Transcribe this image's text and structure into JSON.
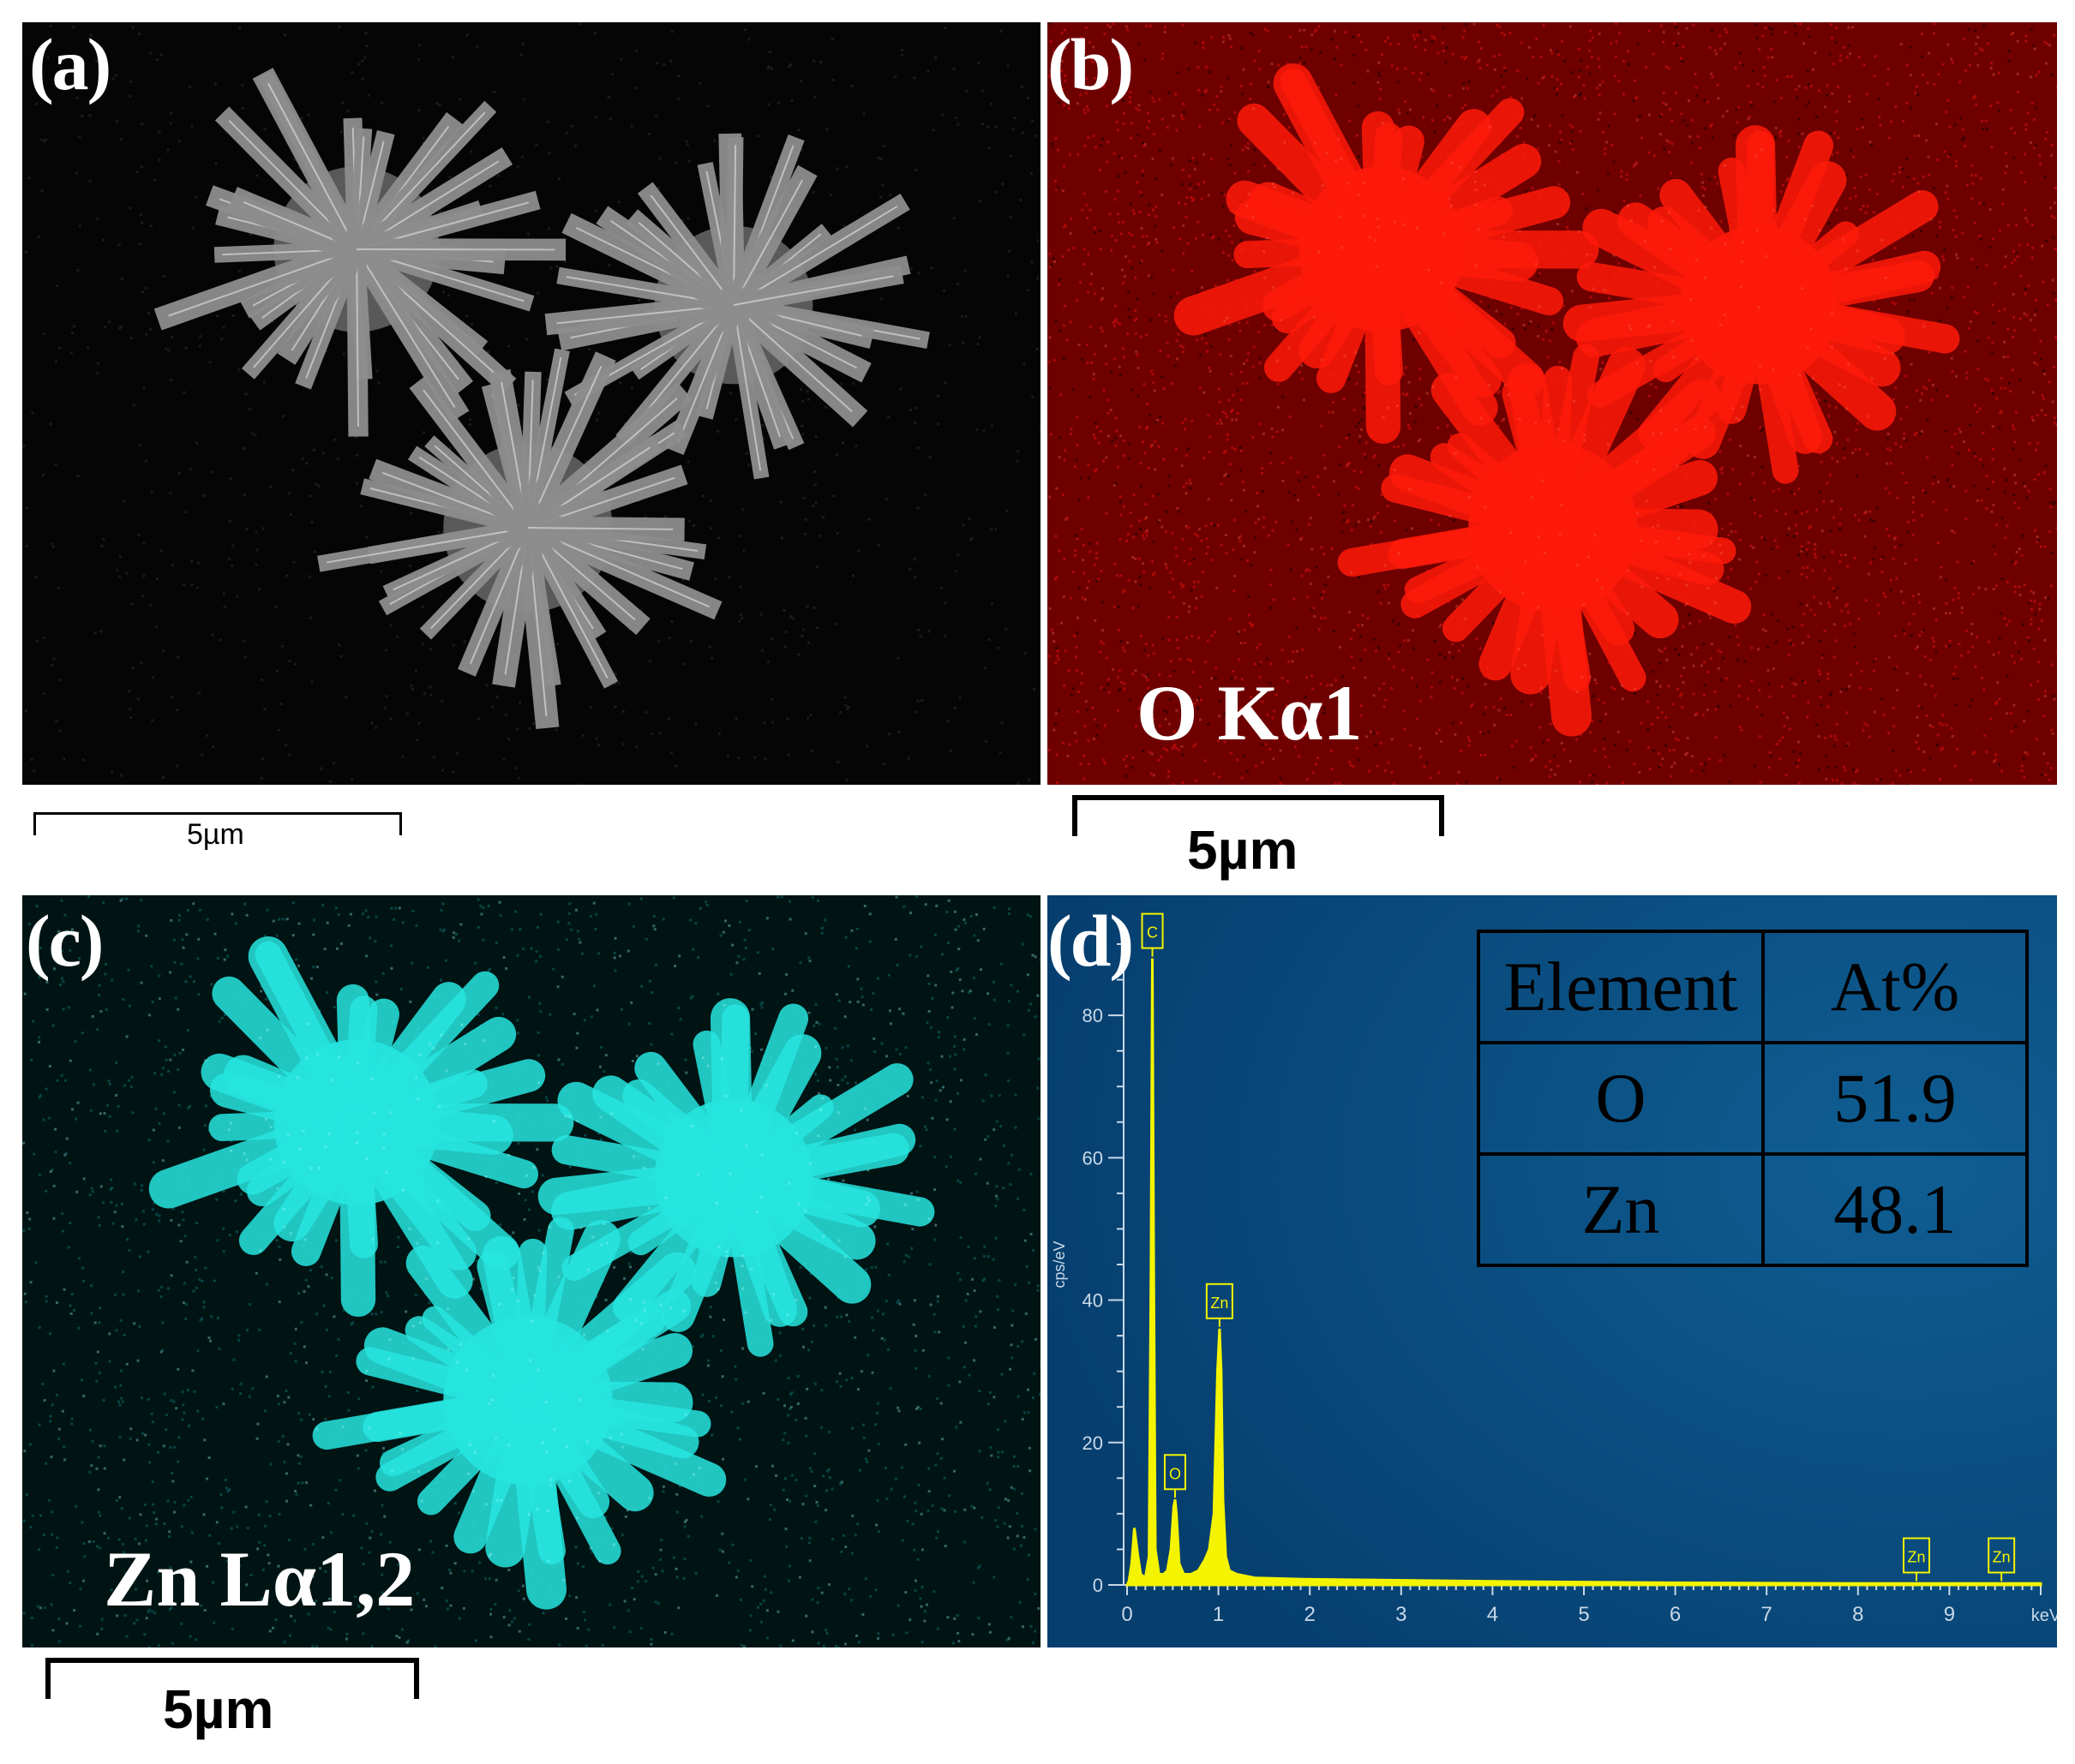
{
  "panels": {
    "a": {
      "label": "(a)",
      "scale": "5µm"
    },
    "b": {
      "label": "(b)",
      "element": "O Kα1",
      "scale": "5µm",
      "colors": {
        "background": "#6e0000",
        "signal": "#ff1a0a"
      }
    },
    "c": {
      "label": "(c)",
      "element": "Zn Lα1,2",
      "scale": "5µm",
      "colors": {
        "background": "#001414",
        "signal": "#27e6e0"
      }
    },
    "d": {
      "label": "(d)",
      "colors": {
        "background": "#063e6e",
        "spectrum": "#f4f400"
      }
    }
  },
  "composition_table": {
    "headers": [
      "Element",
      "At%"
    ],
    "rows": [
      {
        "element": "O",
        "at": "51.9"
      },
      {
        "element": "Zn",
        "at": "48.1"
      }
    ]
  },
  "chart_data": {
    "type": "line",
    "xlabel": "keV",
    "ylabel": "cps/eV",
    "xlim": [
      0,
      10
    ],
    "ylim": [
      0,
      90
    ],
    "x_ticks": [
      "0",
      "1",
      "2",
      "3",
      "4",
      "5",
      "6",
      "7",
      "8",
      "9"
    ],
    "y_ticks": [
      "0",
      "20",
      "40",
      "60",
      "80"
    ],
    "series": [
      {
        "x": [
          0,
          0.02,
          0.05,
          0.08,
          0.12,
          0.15,
          0.2,
          0.24,
          0.262,
          0.277,
          0.292,
          0.31,
          0.35,
          0.4,
          0.44,
          0.48,
          0.51,
          0.525,
          0.54,
          0.57,
          0.62,
          0.7,
          0.78,
          0.85,
          0.9,
          0.95,
          0.99,
          1.012,
          1.03,
          1.05,
          1.08,
          1.12,
          1.2,
          1.4,
          2,
          4,
          6,
          8,
          9,
          10
        ],
        "y": [
          0,
          0.5,
          3,
          8,
          4,
          1.5,
          1,
          4,
          45,
          88,
          45,
          5,
          1.5,
          1.5,
          2,
          5,
          11,
          12,
          10,
          3,
          1.5,
          1.5,
          2,
          3.5,
          5,
          10,
          30,
          36,
          30,
          12,
          4,
          2,
          1.5,
          1,
          0.8,
          0.5,
          0.3,
          0.2,
          0.2,
          0.2
        ]
      }
    ],
    "peak_labels": [
      {
        "label": "C",
        "x": 0.277,
        "y": 88
      },
      {
        "label": "O",
        "x": 0.525,
        "y": 12
      },
      {
        "label": "Zn",
        "x": 1.012,
        "y": 36
      },
      {
        "label": "Zn",
        "x": 8.64,
        "y": 0.3
      },
      {
        "label": "Zn",
        "x": 9.57,
        "y": 0.3
      }
    ]
  }
}
